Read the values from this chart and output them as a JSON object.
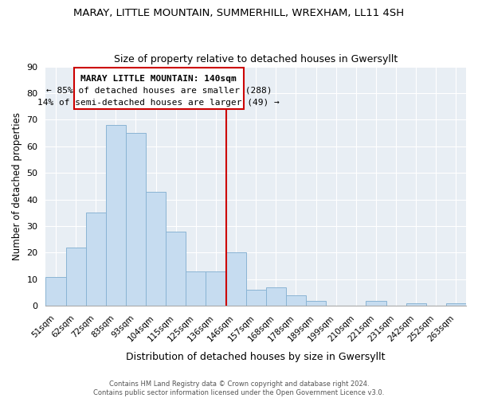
{
  "title": "MARAY, LITTLE MOUNTAIN, SUMMERHILL, WREXHAM, LL11 4SH",
  "subtitle": "Size of property relative to detached houses in Gwersyllt",
  "xlabel": "Distribution of detached houses by size in Gwersyllt",
  "ylabel": "Number of detached properties",
  "bar_labels": [
    "51sqm",
    "62sqm",
    "72sqm",
    "83sqm",
    "93sqm",
    "104sqm",
    "115sqm",
    "125sqm",
    "136sqm",
    "146sqm",
    "157sqm",
    "168sqm",
    "178sqm",
    "189sqm",
    "199sqm",
    "210sqm",
    "221sqm",
    "231sqm",
    "242sqm",
    "252sqm",
    "263sqm"
  ],
  "bar_values": [
    11,
    22,
    35,
    68,
    65,
    43,
    28,
    13,
    13,
    20,
    6,
    7,
    4,
    2,
    0,
    0,
    2,
    0,
    1,
    0,
    1
  ],
  "bar_color": "#c6dcf0",
  "bar_edge_color": "#8ab4d4",
  "vline_x": 8.5,
  "vline_color": "#cc0000",
  "ylim": [
    0,
    90
  ],
  "yticks": [
    0,
    10,
    20,
    30,
    40,
    50,
    60,
    70,
    80,
    90
  ],
  "annotation_title": "MARAY LITTLE MOUNTAIN: 140sqm",
  "annotation_line1": "← 85% of detached houses are smaller (288)",
  "annotation_line2": "14% of semi-detached houses are larger (49) →",
  "bg_color": "#e8eef4",
  "fig_bg_color": "#ffffff",
  "grid_color": "#ffffff",
  "footer1": "Contains HM Land Registry data © Crown copyright and database right 2024.",
  "footer2": "Contains public sector information licensed under the Open Government Licence v3.0."
}
